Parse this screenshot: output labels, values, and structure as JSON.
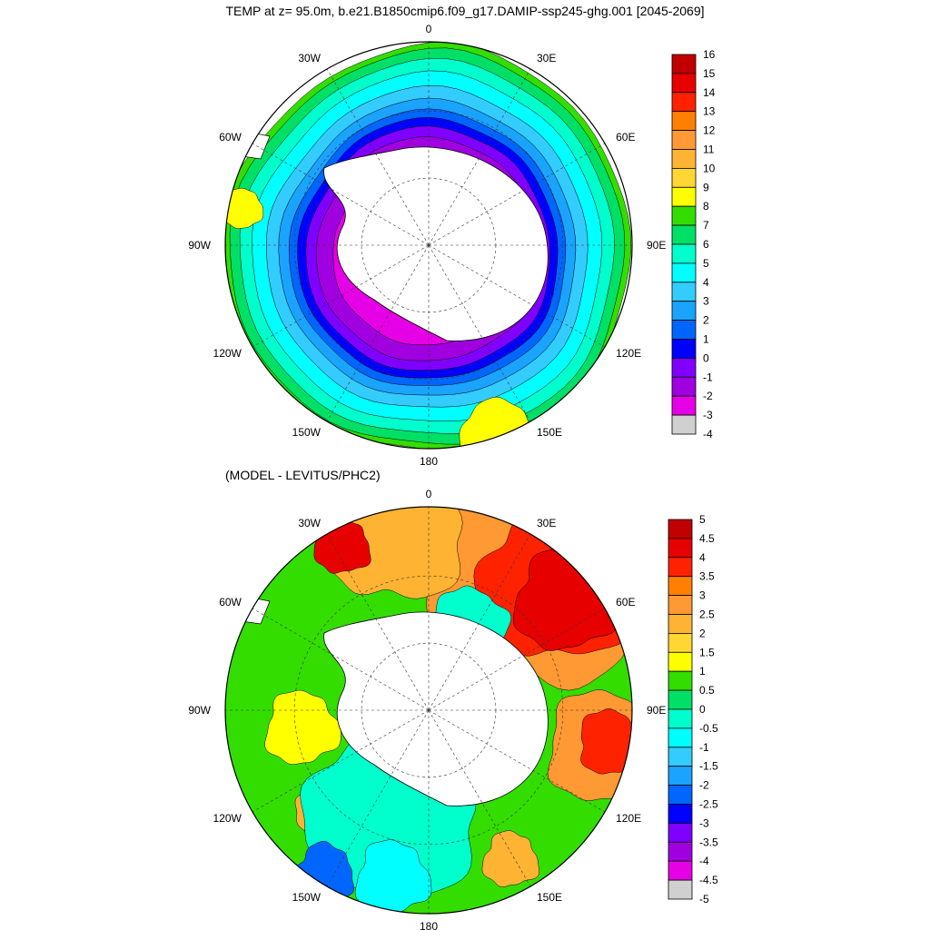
{
  "title": "TEMP at z=  95.0m, b.e21.B1850cmip6.f09_g17.DAMIP-ssp245-ghg.001 [2045-2069]",
  "maps": [
    {
      "subtitle": "",
      "lon_labels": [
        "0",
        "30E",
        "60E",
        "90E",
        "120E",
        "150E",
        "180",
        "150W",
        "120W",
        "90W",
        "60W",
        "30W"
      ],
      "colorbar": {
        "labels": [
          "16",
          "15",
          "14",
          "13",
          "12",
          "11",
          "10",
          "9",
          "8",
          "7",
          "6",
          "5",
          "4",
          "3",
          "2",
          "1",
          "0",
          "-1",
          "-2",
          "-3",
          "-4"
        ],
        "colors": [
          "#c00000",
          "#e60000",
          "#ff2200",
          "#ff8000",
          "#ff9933",
          "#ffb333",
          "#ffd633",
          "#ffff00",
          "#33dd00",
          "#00e066",
          "#00ffcc",
          "#00ffff",
          "#33ccff",
          "#1aa3ff",
          "#0066ff",
          "#0000ff",
          "#8000ff",
          "#a000e0",
          "#e600e6",
          "#d0d0d0",
          "#707070"
        ]
      }
    },
    {
      "subtitle": "(MODEL - LEVITUS/PHC2)",
      "lon_labels": [
        "0",
        "30E",
        "60E",
        "90E",
        "120E",
        "150E",
        "180",
        "150W",
        "120W",
        "90W",
        "60W",
        "30W"
      ],
      "colorbar": {
        "labels": [
          "5",
          "4.5",
          "4",
          "3.5",
          "3",
          "2.5",
          "2",
          "1.5",
          "1",
          "0.5",
          "0",
          "-0.5",
          "-1",
          "-1.5",
          "-2",
          "-2.5",
          "-3",
          "-3.5",
          "-4",
          "-4.5",
          "-5"
        ],
        "colors": [
          "#c00000",
          "#e60000",
          "#ff2200",
          "#ff8000",
          "#ff9933",
          "#ffb333",
          "#ffd633",
          "#ffff00",
          "#33dd00",
          "#00e066",
          "#00ffcc",
          "#00ffff",
          "#33ccff",
          "#1aa3ff",
          "#0066ff",
          "#0000ff",
          "#8000ff",
          "#a000e0",
          "#e600e6",
          "#d0d0d0",
          "#707070"
        ]
      }
    }
  ]
}
